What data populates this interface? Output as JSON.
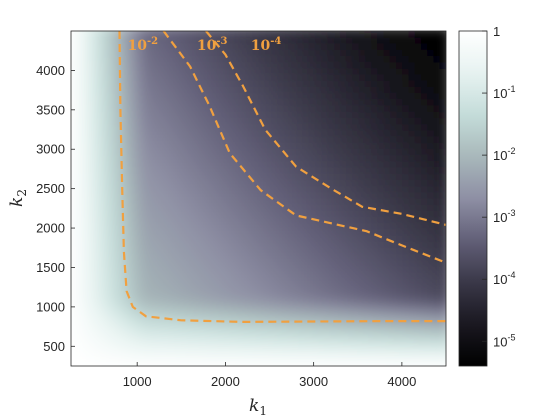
{
  "chart_data": {
    "type": "heatmap",
    "title": "",
    "xlabel": {
      "base": "k",
      "sub": "1"
    },
    "ylabel": {
      "base": "k",
      "sub": "2"
    },
    "xlim": [
      250,
      4500
    ],
    "ylim": [
      250,
      4500
    ],
    "xticks": [
      "1000",
      "2000",
      "3000",
      "4000"
    ],
    "yticks": [
      "500",
      "1000",
      "1500",
      "2000",
      "2500",
      "3000",
      "3500",
      "4000"
    ],
    "colorbar": {
      "scale": "log",
      "range": [
        4e-06,
        1
      ],
      "ticks": [
        {
          "value": 1,
          "base": "1",
          "exp": ""
        },
        {
          "value": 0.1,
          "base": "10",
          "exp": "-1"
        },
        {
          "value": 0.01,
          "base": "10",
          "exp": "-2"
        },
        {
          "value": 0.001,
          "base": "10",
          "exp": "-3"
        },
        {
          "value": 0.0001,
          "base": "10",
          "exp": "-4"
        },
        {
          "value": 1e-05,
          "base": "10",
          "exp": "-5"
        }
      ]
    },
    "colormap": [
      "#000000",
      "#1a1820",
      "#3a3848",
      "#625f78",
      "#8e8fa4",
      "#a8b8ba",
      "#c4dcd9",
      "#e7f3f1",
      "#ffffff"
    ],
    "contour_color": "#f0a040",
    "contours": [
      {
        "level": 0.01,
        "label_base": "10",
        "label_exp": "-2",
        "points": [
          [
            800,
            4500
          ],
          [
            810,
            3500
          ],
          [
            830,
            2500
          ],
          [
            850,
            1700
          ],
          [
            880,
            1200
          ],
          [
            950,
            1000
          ],
          [
            1100,
            880
          ],
          [
            1500,
            830
          ],
          [
            2200,
            810
          ],
          [
            3000,
            815
          ],
          [
            3800,
            820
          ],
          [
            4500,
            820
          ]
        ]
      },
      {
        "level": 0.001,
        "label_base": "10",
        "label_exp": "-3",
        "points": [
          [
            1300,
            4500
          ],
          [
            1600,
            4050
          ],
          [
            1820,
            3550
          ],
          [
            2050,
            2950
          ],
          [
            2400,
            2480
          ],
          [
            2800,
            2160
          ],
          [
            3200,
            2060
          ],
          [
            3600,
            1960
          ],
          [
            4000,
            1780
          ],
          [
            4500,
            1560
          ]
        ]
      },
      {
        "level": 0.0001,
        "label_base": "10",
        "label_exp": "-4",
        "points": [
          [
            1780,
            4500
          ],
          [
            2000,
            4200
          ],
          [
            2200,
            3800
          ],
          [
            2450,
            3250
          ],
          [
            2800,
            2780
          ],
          [
            3200,
            2500
          ],
          [
            3550,
            2270
          ],
          [
            4000,
            2180
          ],
          [
            4500,
            2040
          ]
        ]
      }
    ]
  }
}
